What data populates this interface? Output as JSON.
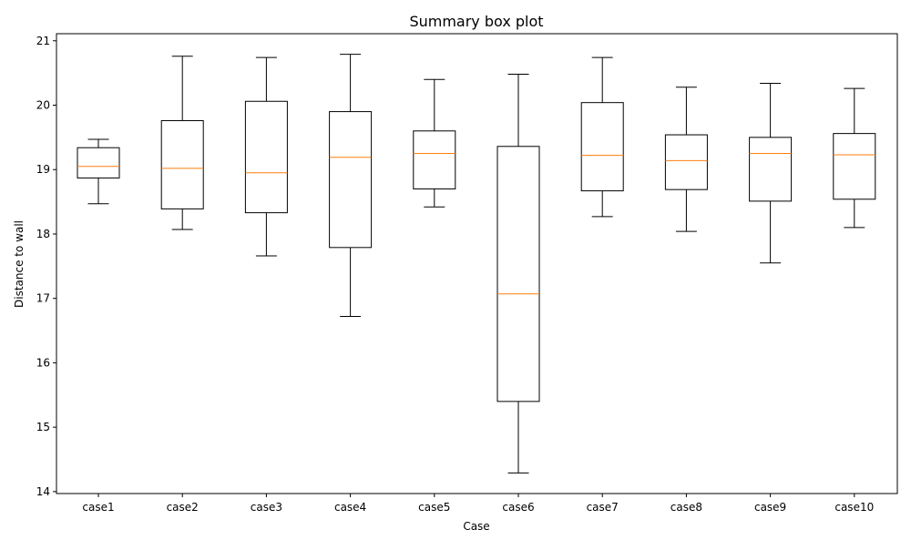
{
  "chart_data": {
    "type": "box",
    "title": "Summary box plot",
    "xlabel": "Case",
    "ylabel": "Distance to wall",
    "ylim": [
      13.97,
      21.11
    ],
    "yticks": [
      14,
      15,
      16,
      17,
      18,
      19,
      20,
      21
    ],
    "grid": false,
    "legend": "none",
    "colors": {
      "box": "#000000",
      "median": "#ff7f0e",
      "axis": "#000000",
      "background": "#ffffff"
    },
    "categories": [
      "case1",
      "case2",
      "case3",
      "case4",
      "case5",
      "case6",
      "case7",
      "case8",
      "case9",
      "case10"
    ],
    "boxes": [
      {
        "category": "case1",
        "whisker_low": 18.47,
        "q1": 18.87,
        "median": 19.05,
        "q3": 19.34,
        "whisker_high": 19.47
      },
      {
        "category": "case2",
        "whisker_low": 18.07,
        "q1": 18.39,
        "median": 19.02,
        "q3": 19.76,
        "whisker_high": 20.76
      },
      {
        "category": "case3",
        "whisker_low": 17.66,
        "q1": 18.33,
        "median": 18.95,
        "q3": 20.06,
        "whisker_high": 20.74
      },
      {
        "category": "case4",
        "whisker_low": 16.72,
        "q1": 17.79,
        "median": 19.19,
        "q3": 19.9,
        "whisker_high": 20.79
      },
      {
        "category": "case5",
        "whisker_low": 18.42,
        "q1": 18.7,
        "median": 19.25,
        "q3": 19.6,
        "whisker_high": 20.4
      },
      {
        "category": "case6",
        "whisker_low": 14.29,
        "q1": 15.4,
        "median": 17.07,
        "q3": 19.36,
        "whisker_high": 20.48
      },
      {
        "category": "case7",
        "whisker_low": 18.27,
        "q1": 18.67,
        "median": 19.22,
        "q3": 20.04,
        "whisker_high": 20.74
      },
      {
        "category": "case8",
        "whisker_low": 18.04,
        "q1": 18.69,
        "median": 19.14,
        "q3": 19.54,
        "whisker_high": 20.28
      },
      {
        "category": "case9",
        "whisker_low": 17.55,
        "q1": 18.51,
        "median": 19.25,
        "q3": 19.5,
        "whisker_high": 20.34
      },
      {
        "category": "case10",
        "whisker_low": 18.1,
        "q1": 18.54,
        "median": 19.23,
        "q3": 19.56,
        "whisker_high": 20.26
      }
    ]
  }
}
